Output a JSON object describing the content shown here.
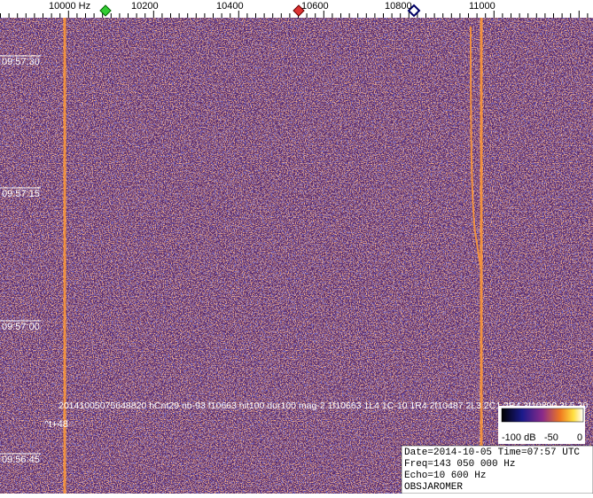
{
  "ruler": {
    "labels": [
      "10000 Hz",
      "10200",
      "10400",
      "10600",
      "10800",
      "11000"
    ]
  },
  "time_labels": [
    "09:57:30",
    "09:57:15",
    "09:57:00",
    "09:56:45"
  ],
  "overlay": {
    "detection": "20141005075648820 hCnt29 nb-93 f10663 hit100 dur100 mag-2 1f10663 1L4 1C-10 1R4 2f10487 2L3 2C1 2R4 3f10899 3L5 30",
    "offset": "^t+48"
  },
  "color_scale": {
    "labels": [
      "-100 dB",
      "-50",
      "0"
    ]
  },
  "info": {
    "lines": [
      "Date=2014-10-05 Time=07:57 UTC",
      "Freq=143 050 000 Hz",
      "Echo=10 600 Hz",
      "OBSJAROMER"
    ]
  }
}
